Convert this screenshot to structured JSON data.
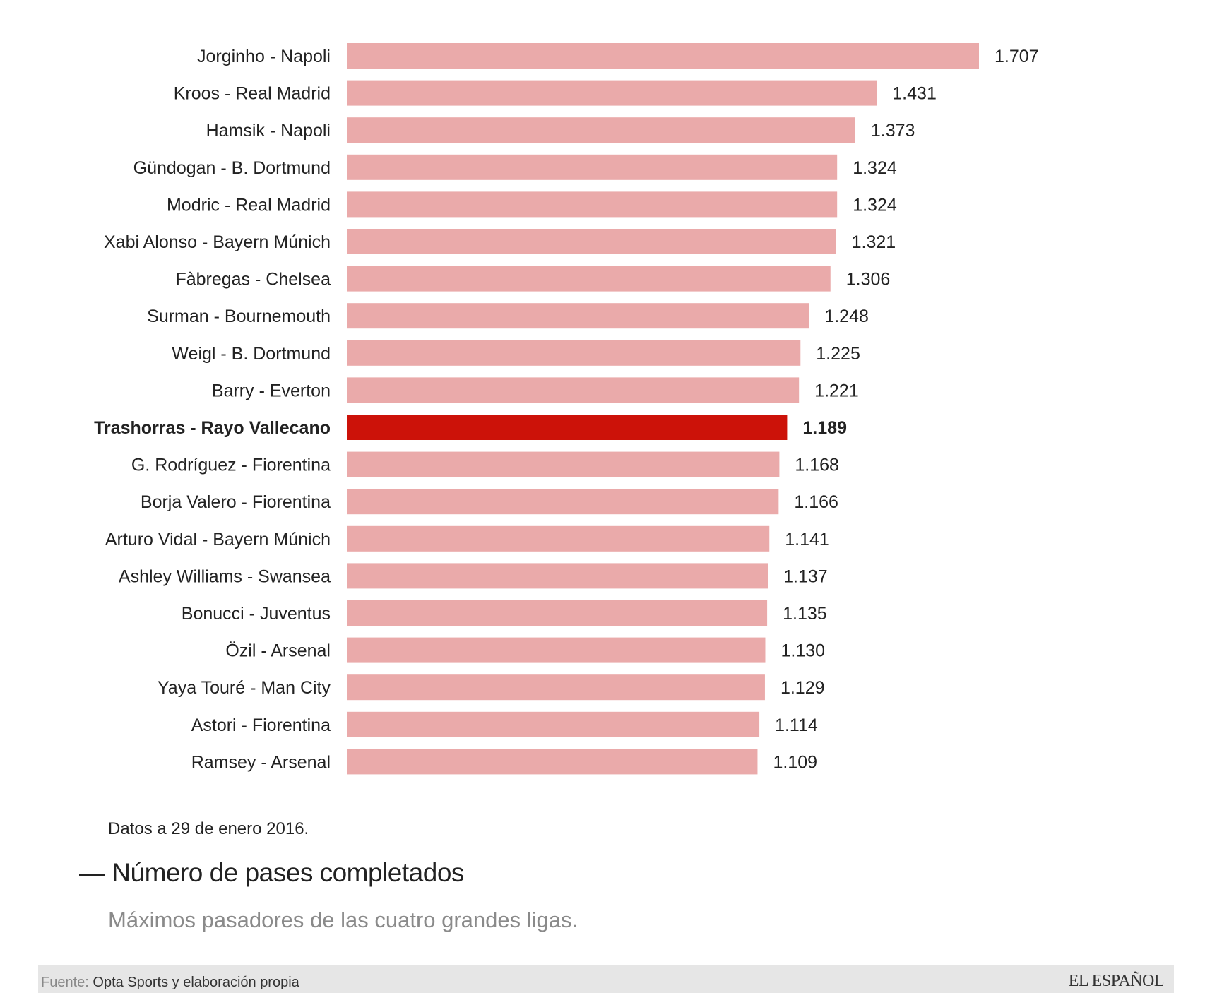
{
  "chart_data": {
    "type": "bar",
    "orientation": "horizontal",
    "title": "Número de pases completados",
    "title_prefix": "—",
    "subtitle": "Máximos pasadores de las cuatro grandes ligas.",
    "note": "Datos a 29 de enero 2016.",
    "categories": [
      "Jorginho - Napoli",
      "Kroos - Real Madrid",
      "Hamsik - Napoli",
      "Gündogan - B. Dortmund",
      "Modric - Real Madrid",
      "Xabi Alonso - Bayern Múnich",
      "Fàbregas - Chelsea",
      "Surman - Bournemouth",
      "Weigl - B. Dortmund",
      "Barry - Everton",
      "Trashorras - Rayo Vallecano",
      "G. Rodríguez - Fiorentina",
      "Borja Valero - Fiorentina",
      "Arturo Vidal - Bayern Múnich",
      "Ashley Williams - Swansea",
      "Bonucci - Juventus",
      "Özil - Arsenal",
      "Yaya Touré - Man City",
      "Astori - Fiorentina",
      "Ramsey - Arsenal"
    ],
    "values": [
      1707,
      1431,
      1373,
      1324,
      1324,
      1321,
      1306,
      1248,
      1225,
      1221,
      1189,
      1168,
      1166,
      1141,
      1137,
      1135,
      1130,
      1129,
      1114,
      1109
    ],
    "value_labels": [
      "1.707",
      "1.431",
      "1.373",
      "1.324",
      "1.324",
      "1.321",
      "1.306",
      "1.248",
      "1.225",
      "1.221",
      "1.189",
      "1.168",
      "1.166",
      "1.141",
      "1.137",
      "1.135",
      "1.130",
      "1.129",
      "1.114",
      "1.109"
    ],
    "highlight_index": 10,
    "xlim": [
      0,
      1707
    ],
    "colors": {
      "bar": "#eaaaaa",
      "highlight": "#cc1209"
    }
  },
  "footer": {
    "source_key": "Fuente:",
    "source_value": "Opta Sports y elaboración propia",
    "brand": "EL ESPAÑOL"
  }
}
